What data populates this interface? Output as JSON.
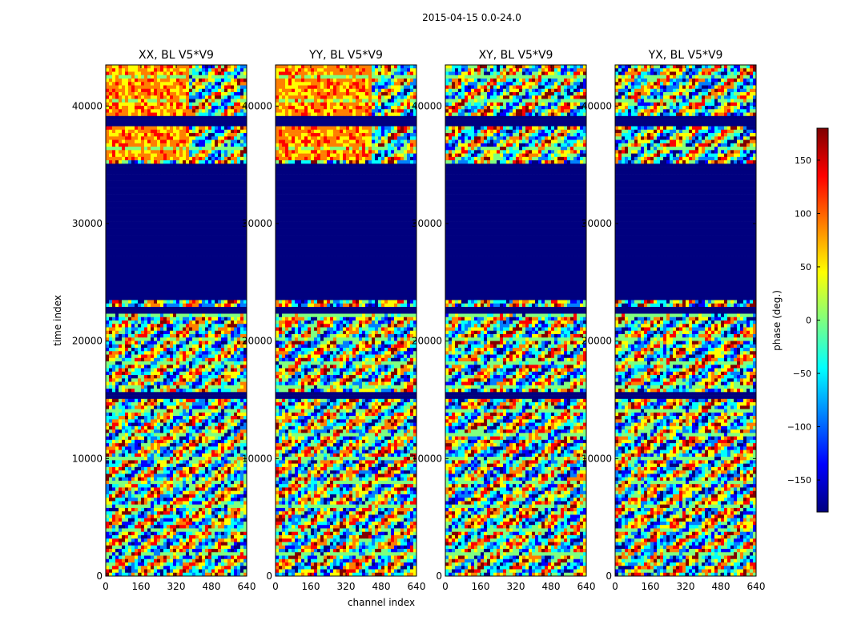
{
  "suptitle": "2015-04-15 0.0-24.0",
  "colors": {
    "jet": [
      "#00007f",
      "#0000ff",
      "#007fff",
      "#00ffff",
      "#7fff7f",
      "#ffff00",
      "#ff7f00",
      "#ff0000",
      "#7f0000"
    ]
  },
  "chart_data": {
    "type": "heatmap",
    "panels": [
      {
        "title": "XX, BL V5*V9",
        "pol": "XX"
      },
      {
        "title": "YY, BL V5*V9",
        "pol": "YY"
      },
      {
        "title": "XY, BL V5*V9",
        "pol": "XY"
      },
      {
        "title": "YX, BL V5*V9",
        "pol": "YX"
      }
    ],
    "xlabel": "channel index",
    "ylabel": "time index",
    "xlim": [
      0,
      640
    ],
    "ylim": [
      0,
      43500
    ],
    "xticks": [
      0,
      160,
      320,
      480,
      640
    ],
    "xtick_labels": [
      "0",
      "160",
      "320",
      "480",
      "640"
    ],
    "yticks": [
      0,
      10000,
      20000,
      30000,
      40000
    ],
    "ytick_labels": [
      "0",
      "10000",
      "20000",
      "30000",
      "40000"
    ],
    "flagged_time_ranges": [
      [
        23600,
        35000
      ],
      [
        38200,
        39100
      ],
      [
        15000,
        15800
      ],
      [
        22400,
        22800
      ]
    ],
    "colorbar": {
      "label": "phase (deg.)",
      "range": [
        -180,
        180
      ],
      "ticks": [
        150,
        100,
        50,
        0,
        -50,
        -100,
        -150
      ],
      "tick_labels": [
        "150",
        "100",
        "50",
        "0",
        "−50",
        "−100",
        "−150"
      ]
    }
  }
}
